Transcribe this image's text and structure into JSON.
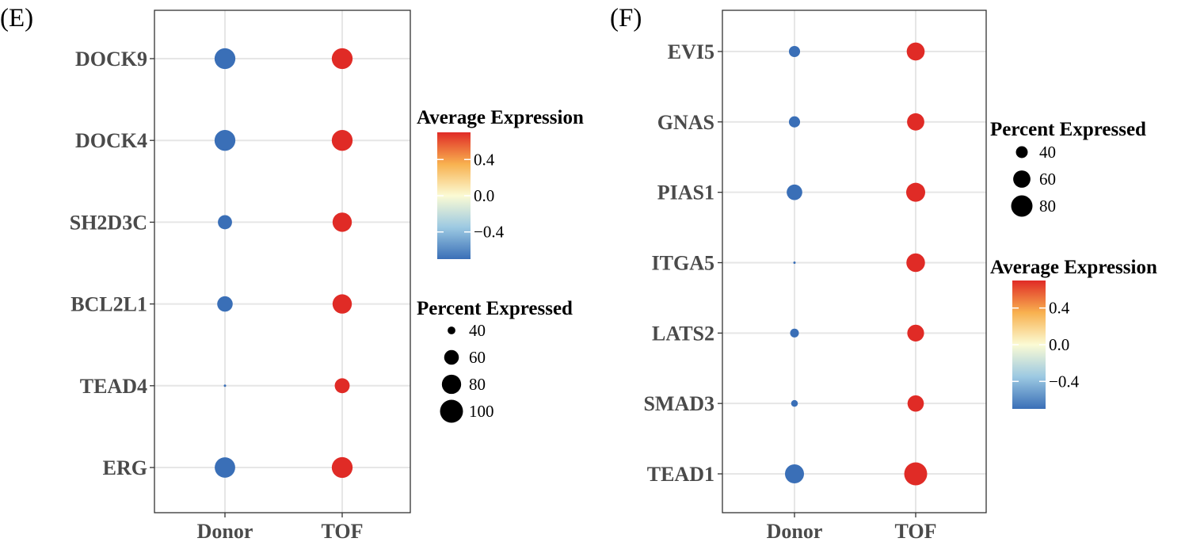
{
  "chart_data": [
    {
      "panel_label": "(E)",
      "type": "dot",
      "categories_x": [
        "Donor",
        "TOF"
      ],
      "genes": [
        "DOCK9",
        "DOCK4",
        "SH2D3C",
        "BCL2L1",
        "TEAD4",
        "ERG"
      ],
      "points": [
        {
          "gene": "DOCK9",
          "group": "Donor",
          "pct": 88,
          "avg": -0.7
        },
        {
          "gene": "DOCK9",
          "group": "TOF",
          "pct": 88,
          "avg": 0.7
        },
        {
          "gene": "DOCK4",
          "group": "Donor",
          "pct": 88,
          "avg": -0.7
        },
        {
          "gene": "DOCK4",
          "group": "TOF",
          "pct": 88,
          "avg": 0.7
        },
        {
          "gene": "SH2D3C",
          "group": "Donor",
          "pct": 58,
          "avg": -0.7
        },
        {
          "gene": "SH2D3C",
          "group": "TOF",
          "pct": 80,
          "avg": 0.7
        },
        {
          "gene": "BCL2L1",
          "group": "Donor",
          "pct": 63,
          "avg": -0.7
        },
        {
          "gene": "BCL2L1",
          "group": "TOF",
          "pct": 80,
          "avg": 0.7
        },
        {
          "gene": "TEAD4",
          "group": "Donor",
          "pct": 33,
          "avg": -0.7
        },
        {
          "gene": "TEAD4",
          "group": "TOF",
          "pct": 61,
          "avg": 0.7
        },
        {
          "gene": "ERG",
          "group": "Donor",
          "pct": 86,
          "avg": -0.7
        },
        {
          "gene": "ERG",
          "group": "TOF",
          "pct": 88,
          "avg": 0.7
        }
      ],
      "legend_color": {
        "title": "Average Expression",
        "ticks": [
          0.4,
          0.0,
          -0.4
        ],
        "tick_labels": [
          "0.4",
          "0.0",
          "−0.4"
        ],
        "range": [
          -0.7,
          0.7
        ]
      },
      "legend_size": {
        "title": "Percent Expressed",
        "values": [
          40,
          60,
          80,
          100
        ],
        "labels": [
          "40",
          "60",
          "80",
          "100"
        ],
        "range": [
          33,
          100
        ]
      },
      "legend_order": [
        "color",
        "size"
      ]
    },
    {
      "panel_label": "(F)",
      "type": "dot",
      "categories_x": [
        "Donor",
        "TOF"
      ],
      "genes": [
        "EVI5",
        "GNAS",
        "PIAS1",
        "ITGA5",
        "LATS2",
        "SMAD3",
        "TEAD1"
      ],
      "points": [
        {
          "gene": "EVI5",
          "group": "Donor",
          "pct": 38,
          "avg": -0.7
        },
        {
          "gene": "EVI5",
          "group": "TOF",
          "pct": 63,
          "avg": 0.7
        },
        {
          "gene": "GNAS",
          "group": "Donor",
          "pct": 38,
          "avg": -0.7
        },
        {
          "gene": "GNAS",
          "group": "TOF",
          "pct": 60,
          "avg": 0.7
        },
        {
          "gene": "PIAS1",
          "group": "Donor",
          "pct": 53,
          "avg": -0.7
        },
        {
          "gene": "PIAS1",
          "group": "TOF",
          "pct": 68,
          "avg": 0.7
        },
        {
          "gene": "ITGA5",
          "group": "Donor",
          "pct": 23,
          "avg": -0.7
        },
        {
          "gene": "ITGA5",
          "group": "TOF",
          "pct": 66,
          "avg": 0.7
        },
        {
          "gene": "LATS2",
          "group": "Donor",
          "pct": 32,
          "avg": -0.7
        },
        {
          "gene": "LATS2",
          "group": "TOF",
          "pct": 58,
          "avg": 0.7
        },
        {
          "gene": "SMAD3",
          "group": "Donor",
          "pct": 28,
          "avg": -0.7
        },
        {
          "gene": "SMAD3",
          "group": "TOF",
          "pct": 56,
          "avg": 0.7
        },
        {
          "gene": "TEAD1",
          "group": "Donor",
          "pct": 68,
          "avg": -0.7
        },
        {
          "gene": "TEAD1",
          "group": "TOF",
          "pct": 89,
          "avg": 0.7
        }
      ],
      "legend_color": {
        "title": "Average Expression",
        "ticks": [
          0.4,
          0.0,
          -0.4
        ],
        "tick_labels": [
          "0.4",
          "0.0",
          "−0.4"
        ],
        "range": [
          -0.7,
          0.7
        ]
      },
      "legend_size": {
        "title": "Percent Expressed",
        "values": [
          40,
          60,
          80
        ],
        "labels": [
          "40",
          "60",
          "80"
        ],
        "range": [
          23,
          89
        ]
      },
      "legend_order": [
        "size",
        "color"
      ]
    }
  ]
}
